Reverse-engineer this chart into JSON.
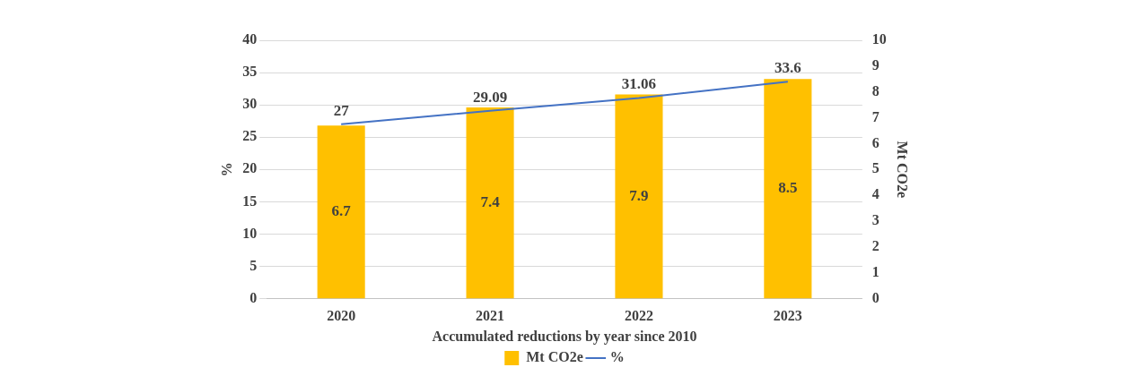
{
  "chart_data": {
    "type": "bar",
    "xlabel": "Accumulated reductions by year since 2010",
    "ylabel": "%",
    "y2label": "Mt CO2e",
    "categories": [
      "2020",
      "2021",
      "2022",
      "2023"
    ],
    "series": [
      {
        "name": "Mt CO2e",
        "axis": "y2",
        "color": "#ffc000",
        "values": [
          6.7,
          7.4,
          7.9,
          8.5
        ]
      },
      {
        "name": "%",
        "type": "line",
        "color": "#4472c4",
        "values": [
          27,
          29.09,
          31.06,
          33.6
        ]
      }
    ],
    "ylim": [
      0,
      40
    ],
    "yticks": [
      0,
      5,
      10,
      15,
      20,
      25,
      30,
      35,
      40
    ],
    "y2lim": [
      0,
      10
    ],
    "y2ticks": [
      0,
      1,
      2,
      3,
      4,
      5,
      6,
      7,
      8,
      9,
      10
    ],
    "grid": "y",
    "legend": "bottom",
    "data_labels": true,
    "marker": "none",
    "line_style": "solid"
  }
}
